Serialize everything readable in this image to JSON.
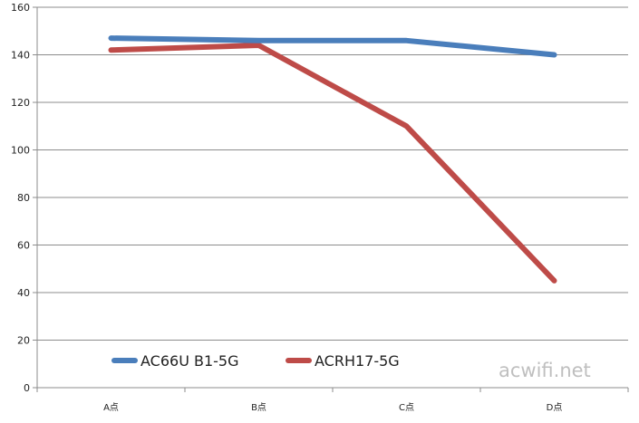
{
  "chart_data": {
    "type": "line",
    "categories": [
      "A点",
      "B点",
      "C点",
      "D点"
    ],
    "series": [
      {
        "name": "AC66U B1-5G",
        "values": [
          147,
          146,
          146,
          140
        ],
        "color": "#4a7ebb"
      },
      {
        "name": "ACRH17-5G",
        "values": [
          142,
          144,
          110,
          45
        ],
        "color": "#be4b48"
      }
    ],
    "ylim": [
      0,
      160
    ],
    "yticks": [
      0,
      20,
      40,
      60,
      80,
      100,
      120,
      140,
      160
    ],
    "grid": true,
    "legend_position": "bottom-left",
    "title": "",
    "xlabel": "",
    "ylabel": ""
  },
  "watermark": "acwifi.net"
}
